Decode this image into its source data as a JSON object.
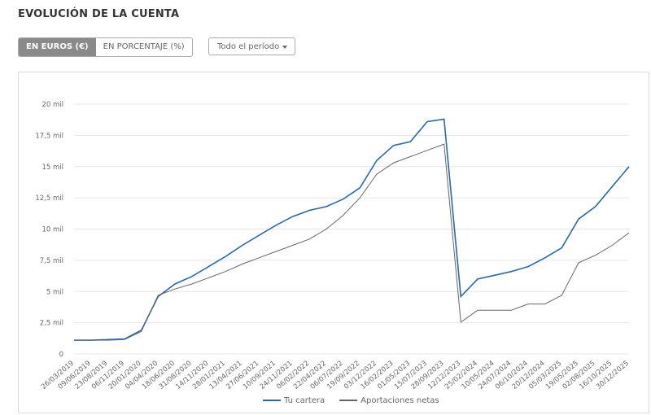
{
  "header": {
    "title": "EVOLUCIÓN DE LA CUENTA"
  },
  "controls": {
    "units": [
      "EN EUROS (€)",
      "EN PORCENTAJE (%)"
    ],
    "period": "Todo el período"
  },
  "chart_data": {
    "type": "line",
    "categories": [
      "26/03/2019",
      "09/06/2019",
      "23/08/2019",
      "06/11/2019",
      "20/01/2020",
      "04/04/2020",
      "18/06/2020",
      "31/08/2020",
      "14/11/2020",
      "28/01/2021",
      "13/04/2021",
      "27/06/2021",
      "10/09/2021",
      "24/11/2021",
      "06/02/2022",
      "22/04/2022",
      "06/07/2022",
      "19/09/2022",
      "03/12/2022",
      "16/02/2023",
      "01/05/2023",
      "15/07/2023",
      "28/09/2023",
      "12/12/2023",
      "25/02/2024",
      "10/05/2024",
      "24/07/2024",
      "06/10/2024",
      "20/12/2024",
      "05/03/2025",
      "19/05/2025",
      "02/08/2025",
      "16/10/2025",
      "30/12/2025"
    ],
    "series": [
      {
        "name": "Tu cartera",
        "color": "#2a67ad",
        "values": [
          1100,
          1100,
          1150,
          1200,
          1900,
          4600,
          5600,
          6200,
          7000,
          7800,
          8700,
          9500,
          10300,
          11000,
          11500,
          11800,
          12400,
          13300,
          15500,
          16700,
          17000,
          18600,
          18800,
          4600,
          6000,
          6300,
          6600,
          7000,
          7700,
          8500,
          10800,
          11800,
          13400,
          15000
        ]
      },
      {
        "name": "Aportaciones netas",
        "color": "#666666",
        "values": [
          1100,
          1100,
          1100,
          1150,
          1800,
          4700,
          5200,
          5600,
          6100,
          6600,
          7200,
          7700,
          8200,
          8700,
          9200,
          10000,
          11100,
          12500,
          14400,
          15300,
          15800,
          16300,
          16800,
          2550,
          3500,
          3500,
          3500,
          4000,
          4000,
          4700,
          7300,
          7900,
          8700,
          9700
        ]
      }
    ],
    "ylim": [
      0,
      20000
    ],
    "yticks": [
      0,
      {
        "value": 2500,
        "label": "2,5 mil"
      },
      {
        "value": 5000,
        "label": "5 mil"
      },
      {
        "value": 7500,
        "label": "7,5 mil"
      },
      {
        "value": 10000,
        "label": "10 mil"
      },
      {
        "value": 12500,
        "label": "12,5 mil"
      },
      {
        "value": 15000,
        "label": "15 mil"
      },
      {
        "value": 17500,
        "label": "17,5 mil"
      },
      {
        "value": 20000,
        "label": "20 mil"
      }
    ],
    "grid": true,
    "legend": "bottom"
  }
}
